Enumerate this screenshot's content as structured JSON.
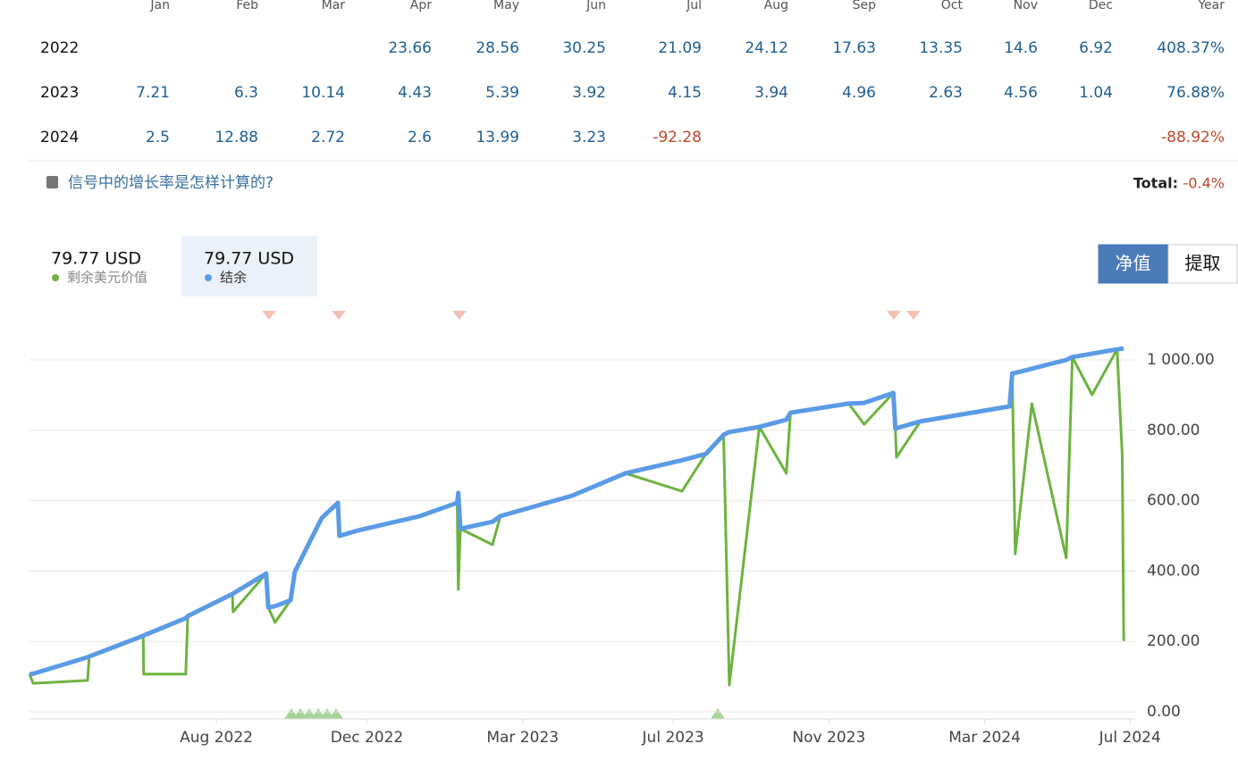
{
  "returns_table": {
    "header": [
      null,
      "Jan",
      "Feb",
      "Mar",
      "Apr",
      "May",
      "Jun",
      "Jul",
      "Aug",
      "Sep",
      "Oct",
      "Nov",
      "Dec",
      "Year"
    ],
    "rows": [
      [
        "2022",
        null,
        null,
        null,
        "23.66",
        "28.56",
        "30.25",
        "21.09",
        "24.12",
        "17.63",
        "13.35",
        "14.6",
        "6.92",
        "408.37%"
      ],
      [
        "2023",
        "7.21",
        "6.3",
        "10.14",
        "4.43",
        "5.39",
        "3.92",
        "4.15",
        "3.94",
        "4.96",
        "2.63",
        "4.56",
        "1.04",
        "76.88%"
      ],
      [
        "2024",
        "2.5",
        "12.88",
        "2.72",
        "2.6",
        "13.99",
        "3.23",
        "-92.28",
        null,
        null,
        null,
        null,
        null,
        "-88.92%"
      ]
    ]
  },
  "growth_note": "信号中的增长率是怎样计算的?",
  "total": {
    "label": "Total:",
    "value": "-0.4%"
  },
  "controls": {
    "buttons": [
      "净值",
      "提取"
    ],
    "active": 0
  },
  "chart_data": {
    "type": "line",
    "x": [
      2022.4,
      2022.407,
      2022.512,
      2022.515,
      2022.619,
      2022.62,
      2022.701,
      2022.705,
      2022.791,
      2022.792,
      2022.856,
      2022.86,
      2022.873,
      2022.903,
      2022.911,
      2022.937,
      2022.963,
      2022.994,
      2022.997,
      2023.032,
      2023.152,
      2023.224,
      2023.226,
      2023.23,
      2023.292,
      2023.307,
      2023.445,
      2023.548,
      2023.657,
      2023.703,
      2023.737,
      2023.748,
      2023.806,
      2023.858,
      2023.866,
      2023.978,
      2024.008,
      2024.064,
      2024.068,
      2024.07,
      2024.116,
      2024.288,
      2024.293,
      2024.299,
      2024.331,
      2024.397,
      2024.409,
      2024.447,
      2024.495,
      2024.505,
      2024.508
    ],
    "series": [
      {
        "name": "剩余美元价值",
        "latest": "79.77 USD",
        "color": "#6db33f",
        "values": [
          107,
          81,
          89,
          157,
          216,
          107,
          107,
          272,
          335,
          284,
          393,
          297,
          254,
          317,
          398,
          475,
          551,
          594,
          500,
          515,
          556,
          594,
          348,
          520,
          475,
          556,
          614,
          678,
          627,
          733,
          787,
          76,
          810,
          678,
          850,
          876,
          817,
          906,
          805,
          723,
          825,
          868,
          962,
          449,
          876,
          437,
          1008,
          901,
          1030,
          728,
          201
        ]
      },
      {
        "name": "结余",
        "latest": "79.77 USD",
        "color": "#5b9be6",
        "values": [
          107,
          108,
          155,
          157,
          216,
          217,
          266,
          272,
          335,
          336,
          393,
          297,
          300,
          317,
          398,
          475,
          551,
          594,
          500,
          515,
          556,
          594,
          622,
          520,
          540,
          556,
          614,
          678,
          715,
          733,
          787,
          795,
          810,
          830,
          850,
          876,
          878,
          906,
          805,
          806,
          825,
          868,
          962,
          963,
          975,
          1000,
          1008,
          1018,
          1030,
          1032,
          1033
        ]
      }
    ],
    "xlim": [
      2022.4,
      2024.53
    ],
    "xticks": [
      {
        "value": 2022.76,
        "label": "Aug 2022"
      },
      {
        "value": 2023.05,
        "label": "Dec 2022"
      },
      {
        "value": 2023.35,
        "label": "Mar 2023"
      },
      {
        "value": 2023.64,
        "label": "Jul 2023"
      },
      {
        "value": 2023.94,
        "label": "Nov 2023"
      },
      {
        "value": 2024.24,
        "label": "Mar 2024"
      },
      {
        "value": 2024.52,
        "label": "Jul 2024"
      }
    ],
    "ylim": [
      0,
      1150
    ],
    "yticks": [
      {
        "value": 0,
        "label": "0.00"
      },
      {
        "value": 200,
        "label": "200.00"
      },
      {
        "value": 400,
        "label": "400.00"
      },
      {
        "value": 600,
        "label": "600.00"
      },
      {
        "value": 800,
        "label": "800.00"
      },
      {
        "value": 1000,
        "label": "1 000.00"
      }
    ],
    "grid": true
  }
}
